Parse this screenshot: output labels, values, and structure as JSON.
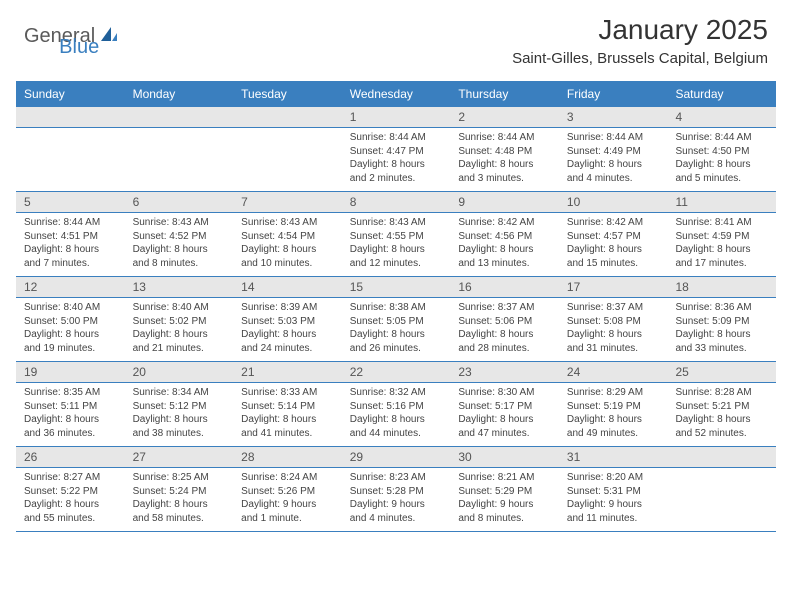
{
  "brand": {
    "part1": "General",
    "part2": "Blue"
  },
  "title": "January 2025",
  "location": "Saint-Gilles, Brussels Capital, Belgium",
  "colors": {
    "header_bg": "#3a7fbf",
    "header_text": "#ffffff",
    "daynum_bg": "#e7e7e7",
    "border": "#3a7fbf",
    "logo_gray": "#5a5a5a",
    "logo_blue": "#3a7fbf",
    "body_text": "#444444"
  },
  "fonts": {
    "title_size": 28,
    "location_size": 15,
    "dayhead_size": 12,
    "daynum_size": 12,
    "body_size": 10
  },
  "day_headers": [
    "Sunday",
    "Monday",
    "Tuesday",
    "Wednesday",
    "Thursday",
    "Friday",
    "Saturday"
  ],
  "weeks": [
    [
      {
        "n": "",
        "sunrise": "",
        "sunset": "",
        "daylight": ""
      },
      {
        "n": "",
        "sunrise": "",
        "sunset": "",
        "daylight": ""
      },
      {
        "n": "",
        "sunrise": "",
        "sunset": "",
        "daylight": ""
      },
      {
        "n": "1",
        "sunrise": "Sunrise: 8:44 AM",
        "sunset": "Sunset: 4:47 PM",
        "daylight": "Daylight: 8 hours and 2 minutes."
      },
      {
        "n": "2",
        "sunrise": "Sunrise: 8:44 AM",
        "sunset": "Sunset: 4:48 PM",
        "daylight": "Daylight: 8 hours and 3 minutes."
      },
      {
        "n": "3",
        "sunrise": "Sunrise: 8:44 AM",
        "sunset": "Sunset: 4:49 PM",
        "daylight": "Daylight: 8 hours and 4 minutes."
      },
      {
        "n": "4",
        "sunrise": "Sunrise: 8:44 AM",
        "sunset": "Sunset: 4:50 PM",
        "daylight": "Daylight: 8 hours and 5 minutes."
      }
    ],
    [
      {
        "n": "5",
        "sunrise": "Sunrise: 8:44 AM",
        "sunset": "Sunset: 4:51 PM",
        "daylight": "Daylight: 8 hours and 7 minutes."
      },
      {
        "n": "6",
        "sunrise": "Sunrise: 8:43 AM",
        "sunset": "Sunset: 4:52 PM",
        "daylight": "Daylight: 8 hours and 8 minutes."
      },
      {
        "n": "7",
        "sunrise": "Sunrise: 8:43 AM",
        "sunset": "Sunset: 4:54 PM",
        "daylight": "Daylight: 8 hours and 10 minutes."
      },
      {
        "n": "8",
        "sunrise": "Sunrise: 8:43 AM",
        "sunset": "Sunset: 4:55 PM",
        "daylight": "Daylight: 8 hours and 12 minutes."
      },
      {
        "n": "9",
        "sunrise": "Sunrise: 8:42 AM",
        "sunset": "Sunset: 4:56 PM",
        "daylight": "Daylight: 8 hours and 13 minutes."
      },
      {
        "n": "10",
        "sunrise": "Sunrise: 8:42 AM",
        "sunset": "Sunset: 4:57 PM",
        "daylight": "Daylight: 8 hours and 15 minutes."
      },
      {
        "n": "11",
        "sunrise": "Sunrise: 8:41 AM",
        "sunset": "Sunset: 4:59 PM",
        "daylight": "Daylight: 8 hours and 17 minutes."
      }
    ],
    [
      {
        "n": "12",
        "sunrise": "Sunrise: 8:40 AM",
        "sunset": "Sunset: 5:00 PM",
        "daylight": "Daylight: 8 hours and 19 minutes."
      },
      {
        "n": "13",
        "sunrise": "Sunrise: 8:40 AM",
        "sunset": "Sunset: 5:02 PM",
        "daylight": "Daylight: 8 hours and 21 minutes."
      },
      {
        "n": "14",
        "sunrise": "Sunrise: 8:39 AM",
        "sunset": "Sunset: 5:03 PM",
        "daylight": "Daylight: 8 hours and 24 minutes."
      },
      {
        "n": "15",
        "sunrise": "Sunrise: 8:38 AM",
        "sunset": "Sunset: 5:05 PM",
        "daylight": "Daylight: 8 hours and 26 minutes."
      },
      {
        "n": "16",
        "sunrise": "Sunrise: 8:37 AM",
        "sunset": "Sunset: 5:06 PM",
        "daylight": "Daylight: 8 hours and 28 minutes."
      },
      {
        "n": "17",
        "sunrise": "Sunrise: 8:37 AM",
        "sunset": "Sunset: 5:08 PM",
        "daylight": "Daylight: 8 hours and 31 minutes."
      },
      {
        "n": "18",
        "sunrise": "Sunrise: 8:36 AM",
        "sunset": "Sunset: 5:09 PM",
        "daylight": "Daylight: 8 hours and 33 minutes."
      }
    ],
    [
      {
        "n": "19",
        "sunrise": "Sunrise: 8:35 AM",
        "sunset": "Sunset: 5:11 PM",
        "daylight": "Daylight: 8 hours and 36 minutes."
      },
      {
        "n": "20",
        "sunrise": "Sunrise: 8:34 AM",
        "sunset": "Sunset: 5:12 PM",
        "daylight": "Daylight: 8 hours and 38 minutes."
      },
      {
        "n": "21",
        "sunrise": "Sunrise: 8:33 AM",
        "sunset": "Sunset: 5:14 PM",
        "daylight": "Daylight: 8 hours and 41 minutes."
      },
      {
        "n": "22",
        "sunrise": "Sunrise: 8:32 AM",
        "sunset": "Sunset: 5:16 PM",
        "daylight": "Daylight: 8 hours and 44 minutes."
      },
      {
        "n": "23",
        "sunrise": "Sunrise: 8:30 AM",
        "sunset": "Sunset: 5:17 PM",
        "daylight": "Daylight: 8 hours and 47 minutes."
      },
      {
        "n": "24",
        "sunrise": "Sunrise: 8:29 AM",
        "sunset": "Sunset: 5:19 PM",
        "daylight": "Daylight: 8 hours and 49 minutes."
      },
      {
        "n": "25",
        "sunrise": "Sunrise: 8:28 AM",
        "sunset": "Sunset: 5:21 PM",
        "daylight": "Daylight: 8 hours and 52 minutes."
      }
    ],
    [
      {
        "n": "26",
        "sunrise": "Sunrise: 8:27 AM",
        "sunset": "Sunset: 5:22 PM",
        "daylight": "Daylight: 8 hours and 55 minutes."
      },
      {
        "n": "27",
        "sunrise": "Sunrise: 8:25 AM",
        "sunset": "Sunset: 5:24 PM",
        "daylight": "Daylight: 8 hours and 58 minutes."
      },
      {
        "n": "28",
        "sunrise": "Sunrise: 8:24 AM",
        "sunset": "Sunset: 5:26 PM",
        "daylight": "Daylight: 9 hours and 1 minute."
      },
      {
        "n": "29",
        "sunrise": "Sunrise: 8:23 AM",
        "sunset": "Sunset: 5:28 PM",
        "daylight": "Daylight: 9 hours and 4 minutes."
      },
      {
        "n": "30",
        "sunrise": "Sunrise: 8:21 AM",
        "sunset": "Sunset: 5:29 PM",
        "daylight": "Daylight: 9 hours and 8 minutes."
      },
      {
        "n": "31",
        "sunrise": "Sunrise: 8:20 AM",
        "sunset": "Sunset: 5:31 PM",
        "daylight": "Daylight: 9 hours and 11 minutes."
      },
      {
        "n": "",
        "sunrise": "",
        "sunset": "",
        "daylight": ""
      }
    ]
  ]
}
